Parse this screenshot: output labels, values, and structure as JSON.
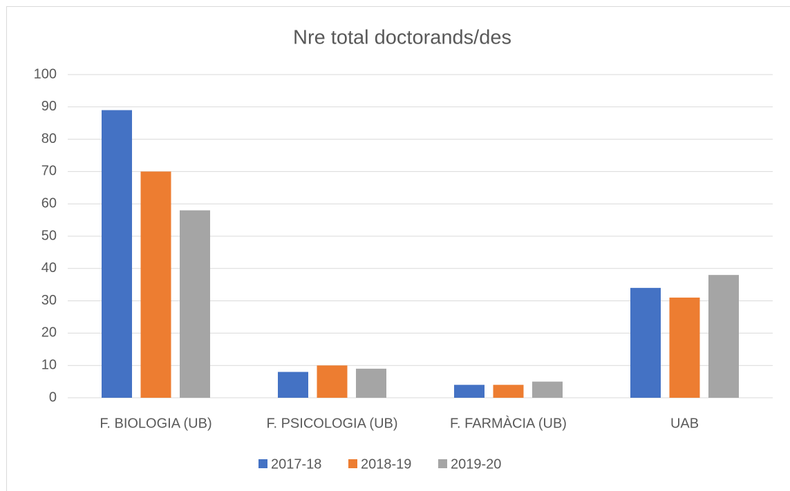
{
  "chart_data": {
    "type": "bar",
    "title": "Nre total doctorands/des",
    "categories": [
      "F. BIOLOGIA (UB)",
      "F. PSICOLOGIA (UB)",
      "F. FARMÀCIA (UB)",
      "UAB"
    ],
    "series": [
      {
        "name": "2017-18",
        "color": "#4472c4",
        "values": [
          89,
          8,
          4,
          34
        ]
      },
      {
        "name": "2018-19",
        "color": "#ed7d31",
        "values": [
          70,
          10,
          4,
          31
        ]
      },
      {
        "name": "2019-20",
        "color": "#a5a5a5",
        "values": [
          58,
          9,
          5,
          38
        ]
      }
    ],
    "ylim": [
      0,
      100
    ],
    "yticks": [
      0,
      10,
      20,
      30,
      40,
      50,
      60,
      70,
      80,
      90,
      100
    ],
    "grid": true,
    "legend": "bottom"
  }
}
